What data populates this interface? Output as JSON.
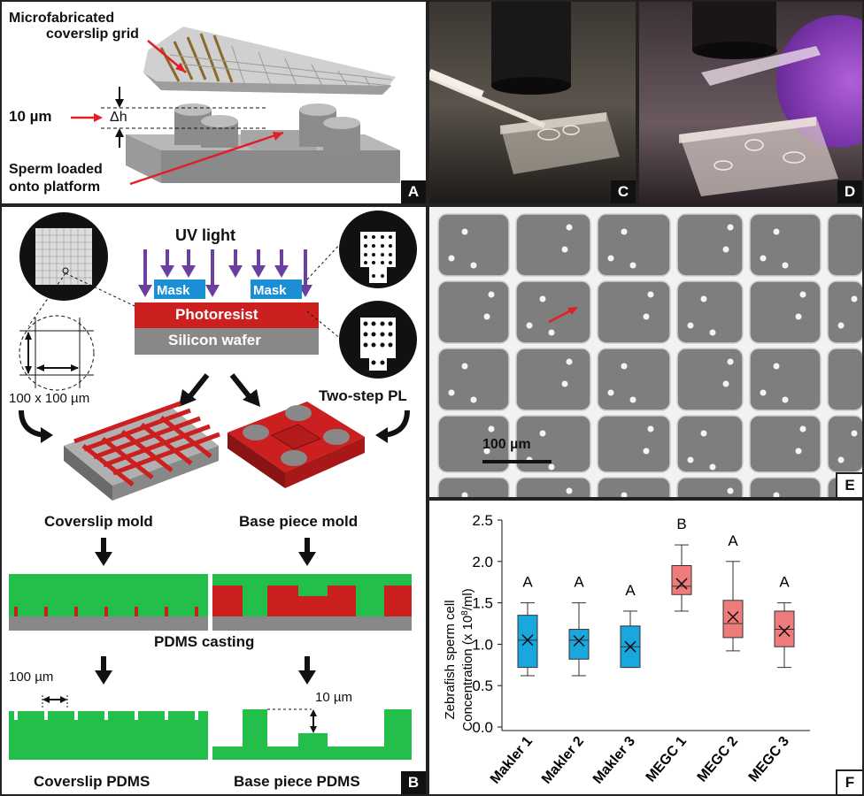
{
  "panel_labels": {
    "a": "A",
    "b": "B",
    "c": "C",
    "d": "D",
    "e": "E",
    "f": "F"
  },
  "panel_a": {
    "coverslip_label_line1": "Microfabricated",
    "coverslip_label_line2": "coverslip grid",
    "height_value": "10 µm",
    "delta_h": "Δh",
    "sperm_label_line1": "Sperm loaded",
    "sperm_label_line2": "onto platform"
  },
  "panel_b": {
    "uv_light": "UV light",
    "mask1": "Mask",
    "mask2": "Mask",
    "photoresist": "Photoresist",
    "silicon_wafer": "Silicon wafer",
    "grid_size": "100 x 100 µm",
    "two_step_pl": "Two-step PL",
    "coverslip_mold": "Coverslip mold",
    "base_piece_mold": "Base piece mold",
    "pdms_casting": "PDMS casting",
    "spacing_label": "100 µm",
    "depth_label": "10 µm",
    "coverslip_pdms": "Coverslip PDMS",
    "base_piece_pdms": "Base piece PDMS"
  },
  "panel_e": {
    "scale_bar": "100 µm"
  },
  "chart_data": {
    "type": "box",
    "ylabel_line1": "Zebrafish sperm cell",
    "ylabel_line2": "Concentration (x 10^8/ml)",
    "ylim": [
      0.0,
      2.5
    ],
    "yticks": [
      "0.0",
      "0.5",
      "1.0",
      "1.5",
      "2.0",
      "2.5"
    ],
    "categories": [
      "Makler 1",
      "Makler 2",
      "Makler 3",
      "MEGC 1",
      "MEGC 2",
      "MEGC 3"
    ],
    "boxes": [
      {
        "min": 0.62,
        "q1": 0.72,
        "median": 1.05,
        "q3": 1.35,
        "max": 1.5,
        "mean": 1.05,
        "group": "A",
        "color": "#1aa7de"
      },
      {
        "min": 0.62,
        "q1": 0.82,
        "median": 1.05,
        "q3": 1.18,
        "max": 1.5,
        "mean": 1.04,
        "group": "A",
        "color": "#1aa7de"
      },
      {
        "min": 0.72,
        "q1": 0.72,
        "median": 0.97,
        "q3": 1.22,
        "max": 1.4,
        "mean": 0.97,
        "group": "A",
        "color": "#1aa7de"
      },
      {
        "min": 1.4,
        "q1": 1.6,
        "median": 1.7,
        "q3": 1.95,
        "max": 2.2,
        "mean": 1.73,
        "group": "B",
        "color": "#f07b7b"
      },
      {
        "min": 0.92,
        "q1": 1.08,
        "median": 1.25,
        "q3": 1.53,
        "max": 2.0,
        "mean": 1.33,
        "group": "A",
        "color": "#f07b7b"
      },
      {
        "min": 0.72,
        "q1": 0.97,
        "median": 1.18,
        "q3": 1.4,
        "max": 1.5,
        "mean": 1.16,
        "group": "A",
        "color": "#f07b7b"
      }
    ]
  },
  "colors": {
    "grid_red": "#cc1f1f",
    "pdms_green": "#22bf4a",
    "wafer_gray": "#888888",
    "uv_purple": "#6a3fa0",
    "mask_blue": "#1a8fd6"
  }
}
